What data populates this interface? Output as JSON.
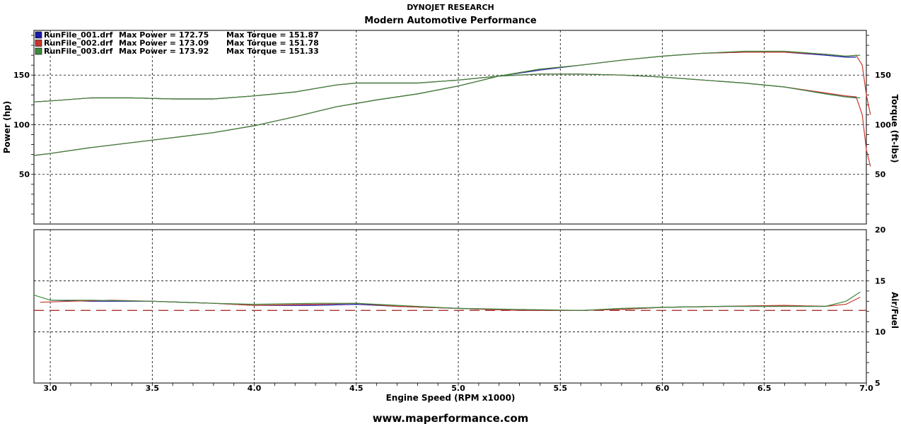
{
  "chart_data": {
    "type": "line",
    "header": {
      "company": "DYNOJET RESEARCH",
      "title": "Modern Automotive Performance"
    },
    "x": {
      "label": "Engine Speed (RPM x1000)",
      "range": [
        2.92,
        7.0
      ],
      "ticks": [
        "3.0",
        "3.5",
        "4.0",
        "4.5",
        "5.0",
        "5.5",
        "6.0",
        "6.5",
        "7.0"
      ]
    },
    "power_panel": {
      "left_label": "Power (hp)",
      "right_label": "Torque (ft-lbs)",
      "y_range": [
        0,
        195
      ],
      "left_ticks": [
        "50",
        "100",
        "150"
      ],
      "right_ticks": [
        "50",
        "100",
        "150"
      ],
      "grid": true
    },
    "afr_panel": {
      "right_label": "Air/Fuel",
      "y_range": [
        5,
        20
      ],
      "right_ticks": [
        "5",
        "10",
        "15",
        "20"
      ],
      "reference_line": 12.1,
      "grid": true
    },
    "legend": [
      {
        "file": "RunFile_001.drf",
        "power_text": "Max Power = 172.75",
        "torque_text": "Max Torque = 151.87",
        "color": "#1a1aa8"
      },
      {
        "file": "RunFile_002.drf",
        "power_text": "Max Power = 173.09",
        "torque_text": "Max Torque = 151.78",
        "color": "#c8352a"
      },
      {
        "file": "RunFile_003.drf",
        "power_text": "Max Power = 173.92",
        "torque_text": "Max Torque = 151.33",
        "color": "#3d8a3d"
      }
    ],
    "series": [
      {
        "color": "#1a1aa8",
        "power": [
          [
            2.92,
            69
          ],
          [
            3.0,
            71
          ],
          [
            3.2,
            77
          ],
          [
            3.4,
            82
          ],
          [
            3.6,
            87
          ],
          [
            3.8,
            92
          ],
          [
            4.0,
            99
          ],
          [
            4.2,
            108
          ],
          [
            4.4,
            118
          ],
          [
            4.6,
            125
          ],
          [
            4.8,
            131
          ],
          [
            5.0,
            139
          ],
          [
            5.1,
            144
          ],
          [
            5.2,
            149
          ],
          [
            5.4,
            155
          ],
          [
            5.6,
            160
          ],
          [
            5.8,
            165
          ],
          [
            6.0,
            169
          ],
          [
            6.2,
            172
          ],
          [
            6.4,
            173
          ],
          [
            6.6,
            173
          ],
          [
            6.8,
            170
          ],
          [
            6.9,
            168
          ],
          [
            6.95,
            168
          ]
        ],
        "torque": [
          [
            2.92,
            123
          ],
          [
            3.0,
            124
          ],
          [
            3.2,
            127
          ],
          [
            3.4,
            127
          ],
          [
            3.6,
            126
          ],
          [
            3.8,
            126
          ],
          [
            4.0,
            129
          ],
          [
            4.2,
            133
          ],
          [
            4.4,
            140
          ],
          [
            4.5,
            142
          ],
          [
            4.6,
            142
          ],
          [
            4.8,
            142
          ],
          [
            5.0,
            145
          ],
          [
            5.2,
            149
          ],
          [
            5.4,
            151
          ],
          [
            5.6,
            151
          ],
          [
            5.8,
            150
          ],
          [
            6.0,
            148
          ],
          [
            6.2,
            145
          ],
          [
            6.4,
            142
          ],
          [
            6.6,
            138
          ],
          [
            6.8,
            131
          ],
          [
            6.9,
            128
          ],
          [
            6.95,
            127
          ]
        ],
        "afr": [
          [
            3.0,
            13.1
          ],
          [
            3.2,
            13.0
          ],
          [
            3.5,
            13.0
          ],
          [
            3.8,
            12.8
          ],
          [
            4.0,
            12.6
          ],
          [
            4.3,
            12.6
          ],
          [
            4.5,
            12.7
          ],
          [
            4.7,
            12.5
          ],
          [
            5.0,
            12.3
          ],
          [
            5.3,
            12.1
          ],
          [
            5.6,
            12.1
          ],
          [
            5.8,
            12.2
          ],
          [
            6.0,
            12.4
          ],
          [
            6.3,
            12.5
          ],
          [
            6.6,
            12.5
          ],
          [
            6.8,
            12.5
          ]
        ]
      },
      {
        "color": "#c8352a",
        "power": [
          [
            2.92,
            69
          ],
          [
            3.0,
            71
          ],
          [
            3.2,
            77
          ],
          [
            3.4,
            82
          ],
          [
            3.6,
            87
          ],
          [
            3.8,
            92
          ],
          [
            4.0,
            99
          ],
          [
            4.2,
            108
          ],
          [
            4.4,
            118
          ],
          [
            4.6,
            125
          ],
          [
            4.8,
            131
          ],
          [
            5.0,
            139
          ],
          [
            5.1,
            144
          ],
          [
            5.2,
            149
          ],
          [
            5.4,
            156
          ],
          [
            5.6,
            160
          ],
          [
            5.8,
            165
          ],
          [
            6.0,
            169
          ],
          [
            6.2,
            172
          ],
          [
            6.4,
            173
          ],
          [
            6.6,
            173
          ],
          [
            6.8,
            171
          ],
          [
            6.9,
            169
          ],
          [
            6.95,
            170
          ],
          [
            6.98,
            160
          ],
          [
            7.0,
            130
          ],
          [
            7.02,
            110
          ]
        ],
        "torque": [
          [
            2.92,
            123
          ],
          [
            3.0,
            124
          ],
          [
            3.2,
            127
          ],
          [
            3.4,
            127
          ],
          [
            3.6,
            126
          ],
          [
            3.8,
            126
          ],
          [
            4.0,
            129
          ],
          [
            4.2,
            133
          ],
          [
            4.4,
            140
          ],
          [
            4.5,
            142
          ],
          [
            4.6,
            142
          ],
          [
            4.8,
            142
          ],
          [
            5.0,
            145
          ],
          [
            5.2,
            149
          ],
          [
            5.4,
            151
          ],
          [
            5.6,
            151
          ],
          [
            5.8,
            150
          ],
          [
            6.0,
            148
          ],
          [
            6.2,
            145
          ],
          [
            6.4,
            142
          ],
          [
            6.6,
            138
          ],
          [
            6.8,
            132
          ],
          [
            6.9,
            129
          ],
          [
            6.95,
            128
          ],
          [
            6.98,
            110
          ],
          [
            7.0,
            75
          ],
          [
            7.02,
            58
          ]
        ],
        "afr": [
          [
            2.95,
            12.9
          ],
          [
            3.1,
            13.0
          ],
          [
            3.3,
            13.1
          ],
          [
            3.5,
            13.0
          ],
          [
            3.8,
            12.8
          ],
          [
            4.0,
            12.6
          ],
          [
            4.3,
            12.7
          ],
          [
            4.5,
            12.8
          ],
          [
            4.7,
            12.5
          ],
          [
            5.0,
            12.3
          ],
          [
            5.3,
            12.1
          ],
          [
            5.6,
            12.1
          ],
          [
            5.8,
            12.2
          ],
          [
            6.0,
            12.4
          ],
          [
            6.3,
            12.5
          ],
          [
            6.6,
            12.6
          ],
          [
            6.8,
            12.5
          ],
          [
            6.9,
            12.7
          ],
          [
            6.97,
            13.4
          ]
        ]
      },
      {
        "color": "#3d8a3d",
        "power": [
          [
            2.92,
            69
          ],
          [
            3.0,
            71
          ],
          [
            3.2,
            77
          ],
          [
            3.4,
            82
          ],
          [
            3.6,
            87
          ],
          [
            3.8,
            92
          ],
          [
            4.0,
            99
          ],
          [
            4.2,
            108
          ],
          [
            4.4,
            118
          ],
          [
            4.6,
            125
          ],
          [
            4.8,
            131
          ],
          [
            5.0,
            139
          ],
          [
            5.1,
            144
          ],
          [
            5.2,
            149
          ],
          [
            5.4,
            156
          ],
          [
            5.6,
            160
          ],
          [
            5.8,
            165
          ],
          [
            6.0,
            169
          ],
          [
            6.2,
            172
          ],
          [
            6.4,
            174
          ],
          [
            6.6,
            174
          ],
          [
            6.8,
            171
          ],
          [
            6.9,
            169
          ],
          [
            6.97,
            170
          ]
        ],
        "torque": [
          [
            2.92,
            123
          ],
          [
            3.0,
            124
          ],
          [
            3.2,
            127
          ],
          [
            3.4,
            127
          ],
          [
            3.6,
            126
          ],
          [
            3.8,
            126
          ],
          [
            4.0,
            129
          ],
          [
            4.2,
            133
          ],
          [
            4.4,
            140
          ],
          [
            4.5,
            142
          ],
          [
            4.6,
            142
          ],
          [
            4.8,
            142
          ],
          [
            5.0,
            145
          ],
          [
            5.2,
            149
          ],
          [
            5.4,
            151
          ],
          [
            5.6,
            151
          ],
          [
            5.8,
            150
          ],
          [
            6.0,
            148
          ],
          [
            6.2,
            145
          ],
          [
            6.4,
            142
          ],
          [
            6.6,
            138
          ],
          [
            6.8,
            131
          ],
          [
            6.9,
            128
          ],
          [
            6.97,
            127
          ]
        ],
        "afr": [
          [
            2.92,
            13.6
          ],
          [
            3.0,
            13.1
          ],
          [
            3.2,
            13.1
          ],
          [
            3.5,
            13.0
          ],
          [
            3.8,
            12.8
          ],
          [
            4.0,
            12.7
          ],
          [
            4.3,
            12.8
          ],
          [
            4.5,
            12.8
          ],
          [
            4.7,
            12.6
          ],
          [
            5.0,
            12.3
          ],
          [
            5.3,
            12.2
          ],
          [
            5.6,
            12.1
          ],
          [
            5.8,
            12.3
          ],
          [
            6.0,
            12.4
          ],
          [
            6.3,
            12.5
          ],
          [
            6.6,
            12.5
          ],
          [
            6.8,
            12.5
          ],
          [
            6.9,
            13.0
          ],
          [
            6.97,
            13.9
          ]
        ]
      }
    ]
  },
  "footer": {
    "website": "www.maperformance.com"
  }
}
